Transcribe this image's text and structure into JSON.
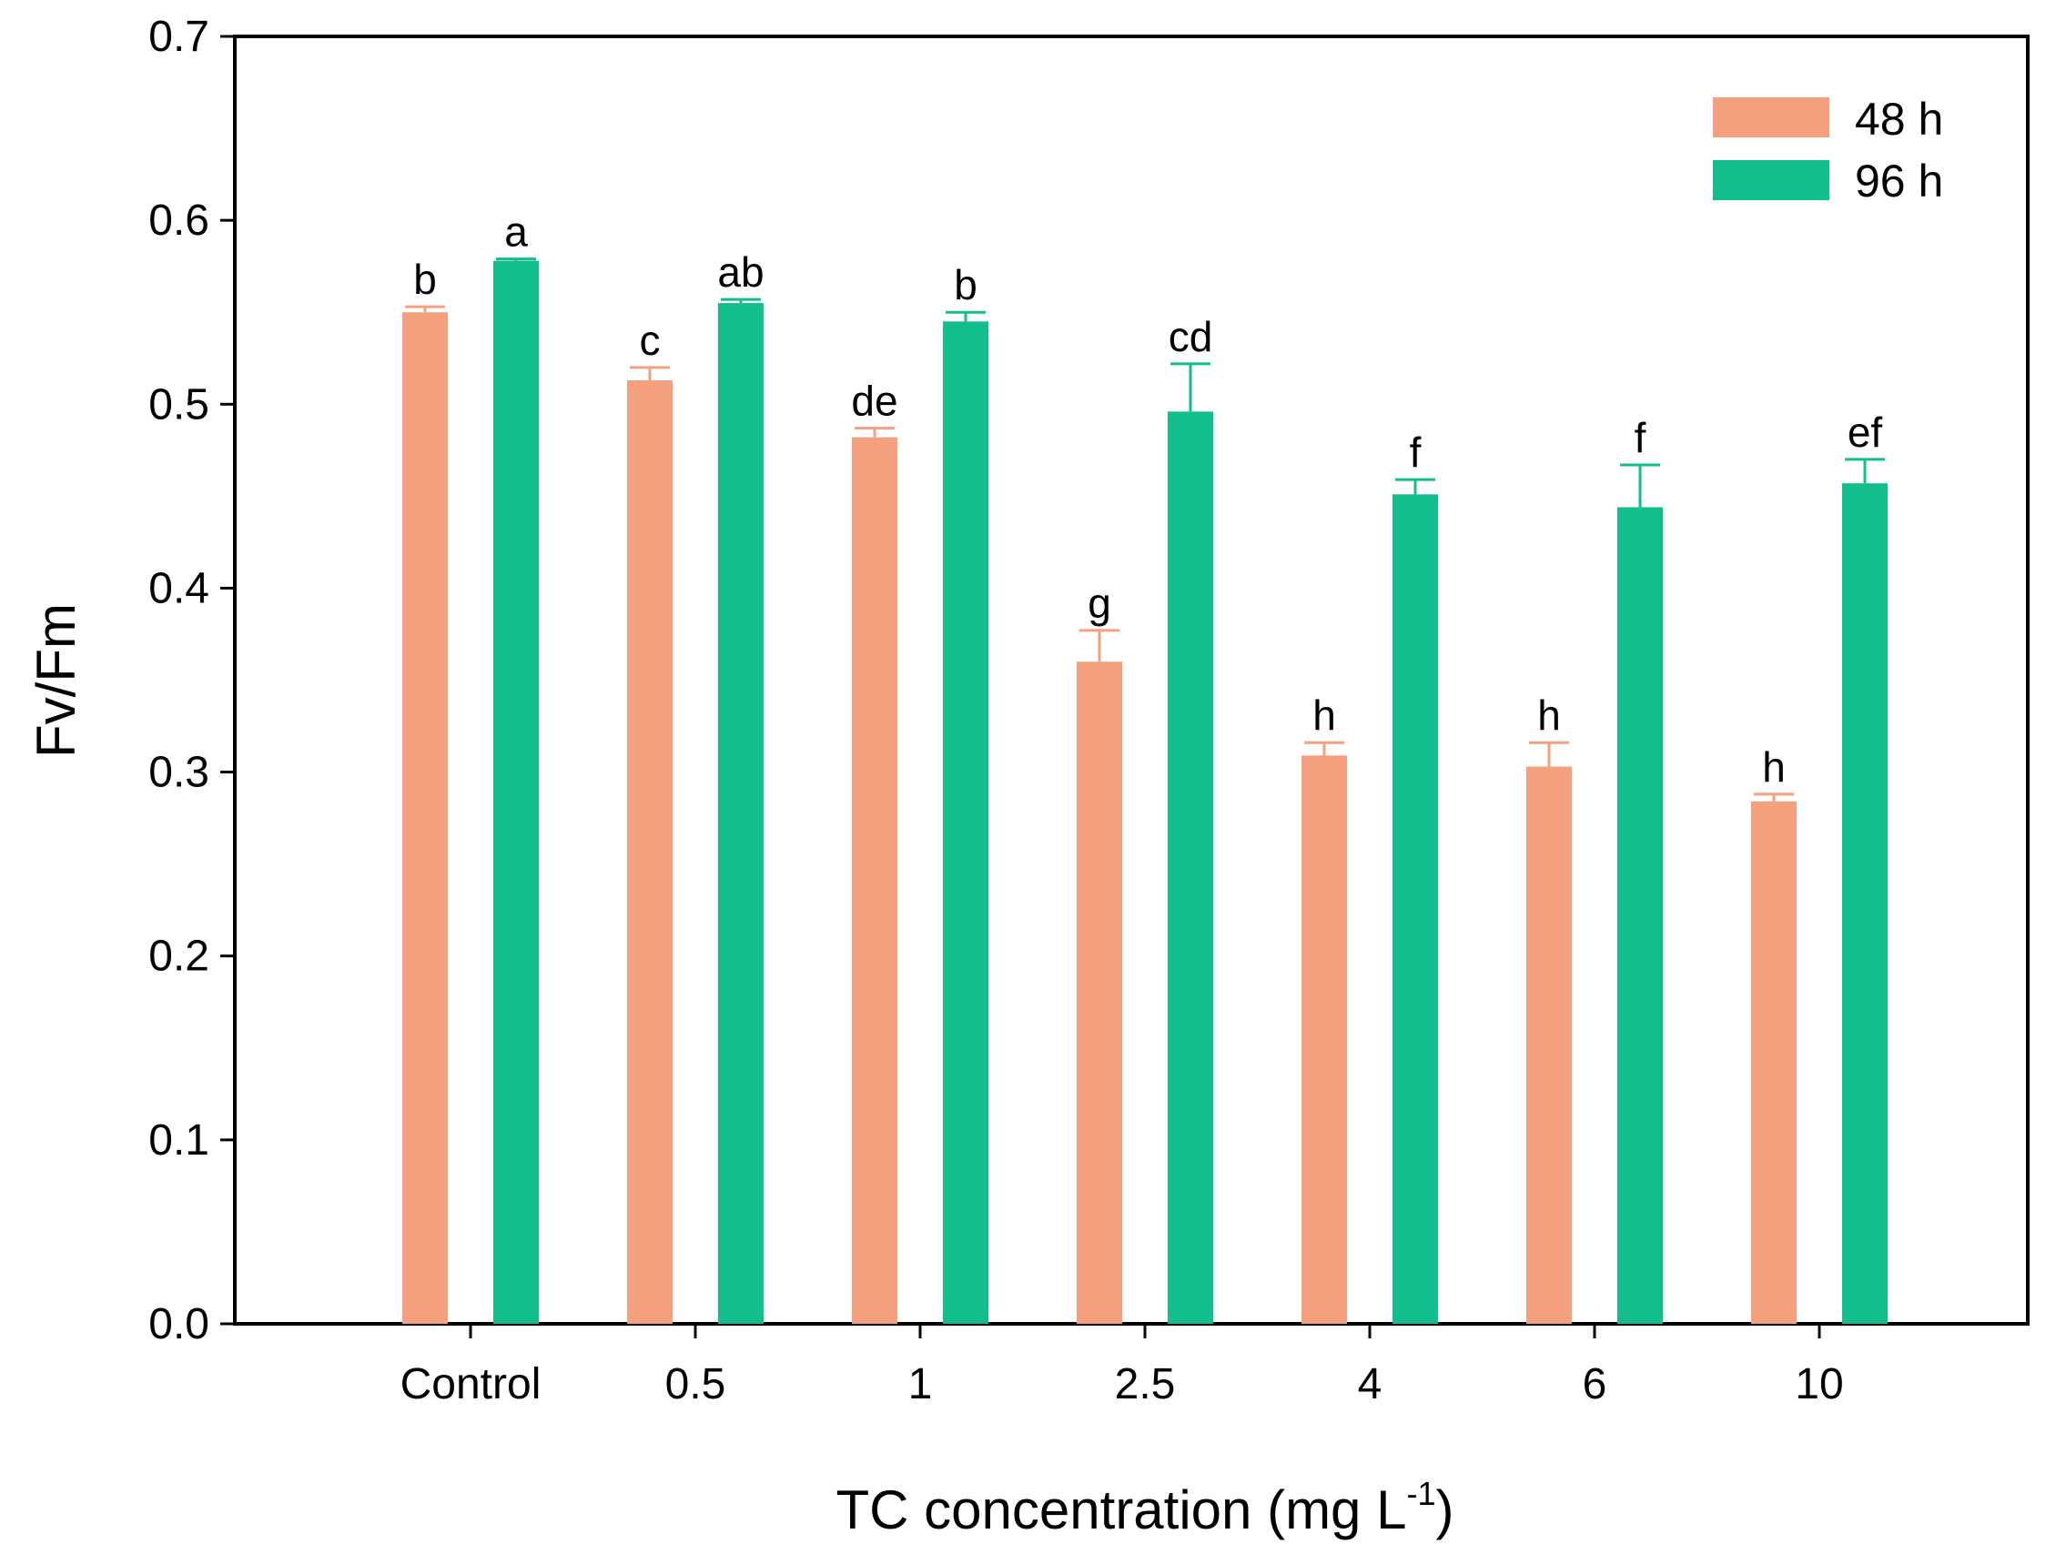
{
  "chart_data": {
    "type": "bar",
    "title": "",
    "xlabel": "TC concentration (mg L",
    "xlabel_sup": "-1",
    "xlabel_close": ")",
    "ylabel": "Fv/Fm",
    "ylim": [
      0,
      0.7
    ],
    "yticks": [
      "0.0",
      "0.1",
      "0.2",
      "0.3",
      "0.4",
      "0.5",
      "0.6",
      "0.7"
    ],
    "ytick_values": [
      0,
      0.1,
      0.2,
      0.3,
      0.4,
      0.5,
      0.6,
      0.7
    ],
    "categories": [
      "Control",
      "0.5",
      "1",
      "2.5",
      "4",
      "6",
      "10"
    ],
    "legend_position": "top-right",
    "series": [
      {
        "name": "48 h",
        "color": "#F4A07F",
        "values": [
          0.55,
          0.513,
          0.482,
          0.36,
          0.309,
          0.303,
          0.284
        ],
        "errors": [
          0.003,
          0.007,
          0.005,
          0.017,
          0.007,
          0.013,
          0.004
        ],
        "letters": [
          "b",
          "c",
          "de",
          "g",
          "h",
          "h",
          "h"
        ]
      },
      {
        "name": "96 h",
        "color": "#12BE8B",
        "values": [
          0.578,
          0.555,
          0.545,
          0.496,
          0.451,
          0.444,
          0.457
        ],
        "errors": [
          0.001,
          0.002,
          0.005,
          0.026,
          0.008,
          0.023,
          0.013
        ],
        "letters": [
          "a",
          "ab",
          "b",
          "cd",
          "f",
          "f",
          "ef"
        ]
      }
    ]
  }
}
